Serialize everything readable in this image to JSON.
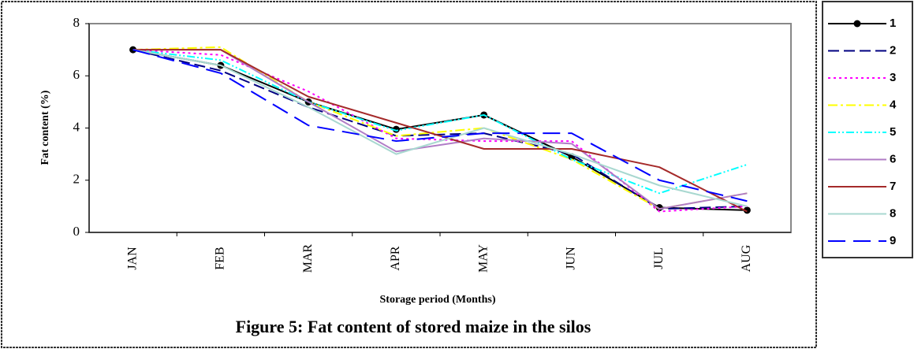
{
  "chart_data": {
    "type": "line",
    "caption": "Figure 5: Fat content of stored maize in the silos",
    "xlabel": "Storage period (Months)",
    "ylabel": "Fat content (%)",
    "categories": [
      "JAN",
      "FEB",
      "MAR",
      "APR",
      "MAY",
      "JUN",
      "JUL",
      "AUG"
    ],
    "ylim": [
      0,
      8
    ],
    "yticks": [
      0,
      2,
      4,
      6,
      8
    ],
    "series": [
      {
        "name": "1",
        "color": "#000000",
        "marker": "circle",
        "values": [
          7,
          6.4,
          5.0,
          3.95,
          4.5,
          2.9,
          0.95,
          0.85
        ]
      },
      {
        "name": "2",
        "color": "#000080",
        "values": [
          7,
          6.2,
          4.8,
          3.7,
          3.8,
          3.0,
          0.9,
          1.0
        ]
      },
      {
        "name": "3",
        "color": "#ff00ff",
        "values": [
          7,
          6.8,
          5.4,
          3.6,
          3.5,
          3.5,
          0.8,
          1.0
        ]
      },
      {
        "name": "4",
        "color": "#ffff00",
        "values": [
          7,
          7.1,
          5.0,
          3.7,
          4.0,
          2.8,
          0.9,
          1.5
        ]
      },
      {
        "name": "5",
        "color": "#00ffff",
        "values": [
          7,
          6.6,
          5.0,
          3.9,
          4.5,
          2.8,
          1.5,
          2.6
        ]
      },
      {
        "name": "6",
        "color": "#b07cc6",
        "values": [
          7,
          7.0,
          5.0,
          3.1,
          3.6,
          3.4,
          0.9,
          1.5
        ]
      },
      {
        "name": "7",
        "color": "#a52a2a",
        "values": [
          7,
          7.0,
          5.2,
          4.2,
          3.2,
          3.2,
          2.5,
          0.8
        ]
      },
      {
        "name": "8",
        "color": "#a8d8d0",
        "values": [
          7,
          6.4,
          4.8,
          3.0,
          4.0,
          3.0,
          1.8,
          1.0
        ]
      },
      {
        "name": "9",
        "color": "#0000ff",
        "values": [
          7,
          6.1,
          4.1,
          3.5,
          3.8,
          3.8,
          2.0,
          1.2
        ]
      }
    ]
  }
}
